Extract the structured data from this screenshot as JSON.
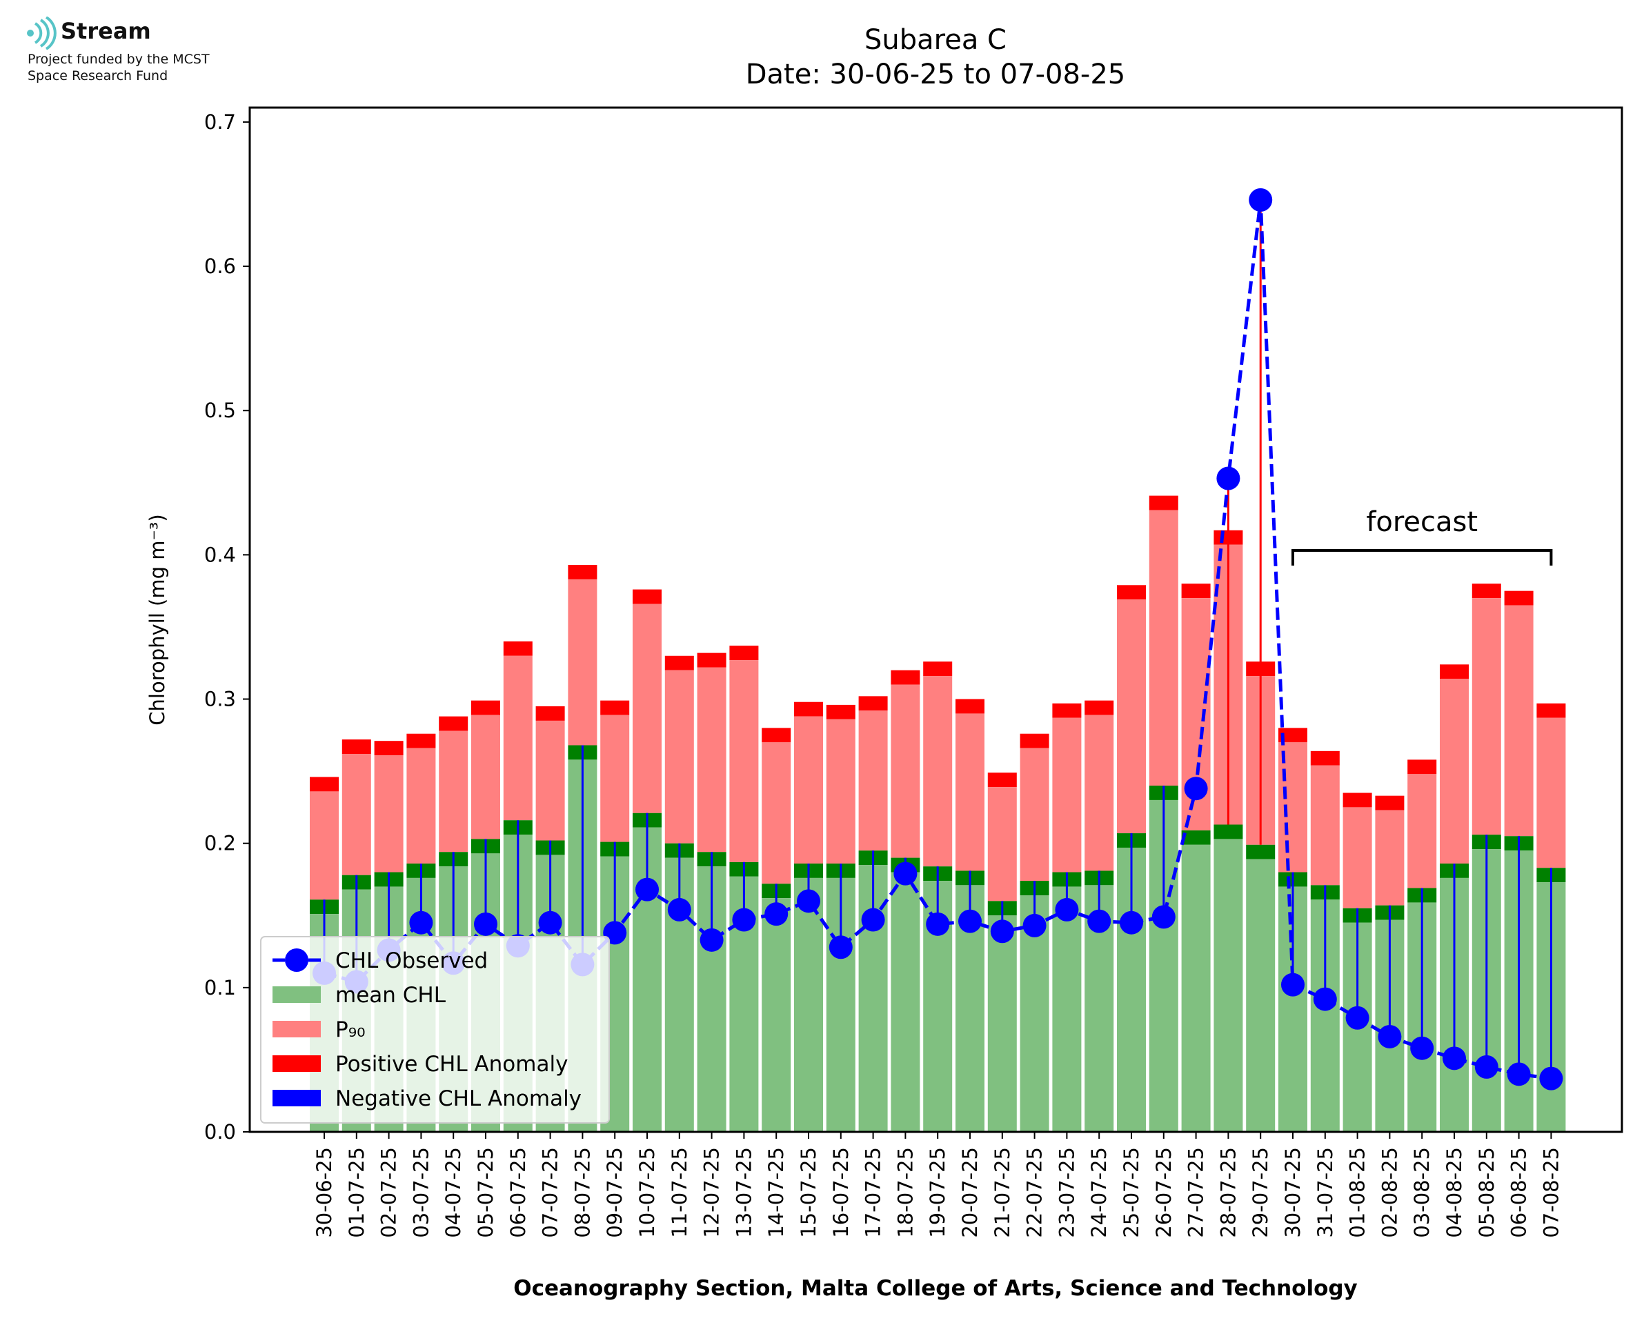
{
  "logo": {
    "name": "Stream",
    "line1": "Project funded by the MCST",
    "line2": "Space Research Fund"
  },
  "colors": {
    "mean": "#80c080",
    "mean_cap": "#008000",
    "p90": "#ff8080",
    "p90_cap": "#ff0000",
    "observed": "#0000ff",
    "positive_anomaly": "#ff0000",
    "negative_anomaly": "#0000ff"
  },
  "chart_data": {
    "type": "bar",
    "title": "Subarea C",
    "subtitle": "Date: 30-06-25 to 07-08-25",
    "xlabel": "Oceanography Section, Malta College of Arts, Science and Technology",
    "ylabel": "Chlorophyll (mg m⁻³)",
    "ylim": [
      0,
      0.71
    ],
    "yticks": [
      "0.0",
      "0.1",
      "0.2",
      "0.3",
      "0.4",
      "0.5",
      "0.6",
      "0.7"
    ],
    "categories": [
      "30-06-25",
      "01-07-25",
      "02-07-25",
      "03-07-25",
      "04-07-25",
      "05-07-25",
      "06-07-25",
      "07-07-25",
      "08-07-25",
      "09-07-25",
      "10-07-25",
      "11-07-25",
      "12-07-25",
      "13-07-25",
      "14-07-25",
      "15-07-25",
      "16-07-25",
      "17-07-25",
      "18-07-25",
      "19-07-25",
      "20-07-25",
      "21-07-25",
      "22-07-25",
      "23-07-25",
      "24-07-25",
      "25-07-25",
      "26-07-25",
      "27-07-25",
      "28-07-25",
      "29-07-25",
      "30-07-25",
      "31-07-25",
      "01-08-25",
      "02-08-25",
      "03-08-25",
      "04-08-25",
      "05-08-25",
      "06-08-25",
      "07-08-25"
    ],
    "series": [
      {
        "name": "CHL Observed",
        "values": [
          0.11,
          0.104,
          0.126,
          0.145,
          0.117,
          0.144,
          0.129,
          0.145,
          0.116,
          0.138,
          0.168,
          0.154,
          0.133,
          0.147,
          0.151,
          0.16,
          0.128,
          0.147,
          0.179,
          0.144,
          0.146,
          0.139,
          0.143,
          0.154,
          0.146,
          0.145,
          0.149,
          0.238,
          0.453,
          0.646,
          0.102,
          0.092,
          0.079,
          0.066,
          0.058,
          0.051,
          0.045,
          0.04,
          0.037
        ]
      },
      {
        "name": "mean CHL",
        "values": [
          0.161,
          0.178,
          0.18,
          0.186,
          0.194,
          0.203,
          0.216,
          0.202,
          0.268,
          0.201,
          0.221,
          0.2,
          0.194,
          0.187,
          0.172,
          0.186,
          0.186,
          0.195,
          0.19,
          0.184,
          0.181,
          0.16,
          0.174,
          0.18,
          0.181,
          0.207,
          0.24,
          0.209,
          0.213,
          0.199,
          0.18,
          0.171,
          0.155,
          0.157,
          0.169,
          0.186,
          0.206,
          0.205,
          0.183
        ]
      },
      {
        "name": "P₉₀",
        "values": [
          0.246,
          0.272,
          0.271,
          0.276,
          0.288,
          0.299,
          0.34,
          0.295,
          0.393,
          0.299,
          0.376,
          0.33,
          0.332,
          0.337,
          0.28,
          0.298,
          0.296,
          0.302,
          0.32,
          0.326,
          0.3,
          0.249,
          0.276,
          0.297,
          0.299,
          0.379,
          0.441,
          0.38,
          0.417,
          0.326,
          0.28,
          0.264,
          0.235,
          0.233,
          0.258,
          0.324,
          0.38,
          0.375,
          0.297
        ]
      }
    ],
    "forecast_label": "forecast",
    "forecast_range": [
      "30-07-25",
      "07-08-25"
    ],
    "legend": {
      "position": "lower-left",
      "entries": [
        "CHL Observed",
        "mean CHL",
        "P₉₀",
        "Positive CHL Anomaly",
        "Negative CHL Anomaly"
      ]
    },
    "grid": false
  }
}
